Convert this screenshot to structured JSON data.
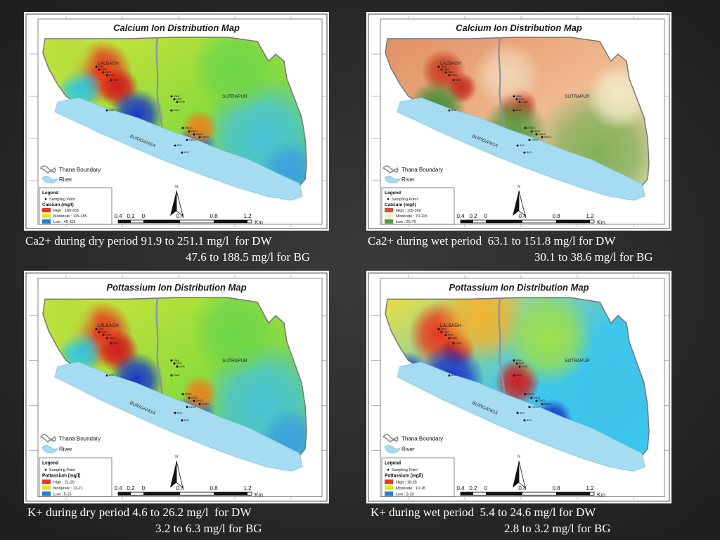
{
  "maps": [
    {
      "id": "ca-dry",
      "title": "Calcium Ion Distribution Map",
      "theme": "rainbow",
      "legend": {
        "heading": "Legend",
        "sampling_point": "Sampling Point",
        "variable": "Calcium (mg/l)",
        "classes": [
          {
            "label": "High : 185-255",
            "color": "#e8361c"
          },
          {
            "label": "Moderate : 115-185",
            "color": "#e7e51e"
          },
          {
            "label": "Low : 45-115",
            "color": "#2b7ad6"
          }
        ]
      },
      "caption": {
        "line1": "Ca2+ during dry period 91.9 to 251.1 mg/l  for DW",
        "line2": "47.6 to 188.5 mg/l for BG"
      }
    },
    {
      "id": "ca-wet",
      "title": "Calcium Ion Distribution Map",
      "theme": "earth",
      "legend": {
        "heading": "Legend",
        "sampling_point": "Sampling Point",
        "variable": "Calcium (mg/l)",
        "classes": [
          {
            "label": "High : 115-160",
            "color": "#c9542f"
          },
          {
            "label": "Moderate : 70-115",
            "color": "#f2eec9"
          },
          {
            "label": "Low : 25-70",
            "color": "#4e9a3a"
          }
        ]
      },
      "caption": {
        "line1": "Ca2+ during wet period  63.1 to 151.8 mg/l for DW",
        "line2": "30.1 to 38.6 mg/l for BG"
      }
    },
    {
      "id": "k-dry",
      "title": "Pottassium Ion Distribution Map",
      "theme": "rainbow",
      "legend": {
        "heading": "Legend",
        "sampling_point": "Sampling Point",
        "variable": "Pottassium (mg/l)",
        "classes": [
          {
            "label": "High : 21-29",
            "color": "#e8361c"
          },
          {
            "label": "Moderate : 13-21",
            "color": "#e7e51e"
          },
          {
            "label": "Low : 5-13",
            "color": "#2b7ad6"
          }
        ]
      },
      "caption": {
        "line1": "K+ during dry period 4.6 to 26.2 mg/l  for DW",
        "line2": "3.2 to 6.3 mg/l for BG"
      }
    },
    {
      "id": "k-wet",
      "title": "Pottassium Ion Distribution Map",
      "theme": "rainbow-blue",
      "legend": {
        "heading": "Legend",
        "sampling_point": "Sampling Point",
        "variable": "Pottassium (mg/l)",
        "classes": [
          {
            "label": "High : 18-26",
            "color": "#e8361c"
          },
          {
            "label": "Moderate : 10-18",
            "color": "#e7e51e"
          },
          {
            "label": "Low : 2-10",
            "color": "#2b7ad6"
          }
        ]
      },
      "caption": {
        "line1": "K+ during wet period  5.4 to 24.6 mg/l for DW",
        "line2": "2.8 to 3.2 mg/l for BG"
      }
    }
  ],
  "common": {
    "place_lalbagh": "LALBAGH",
    "place_sutrapur": "SUTRAPUR",
    "river_name": "BURIGANGA",
    "boundary_label": "Thana Boundary",
    "river_label": "River",
    "north": "N",
    "scale_labels": [
      "0.4",
      "0.2",
      "0",
      "0.4",
      "0.8",
      "1.2"
    ],
    "scale_unit": "Km"
  }
}
